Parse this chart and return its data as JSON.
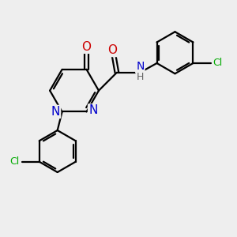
{
  "bg_color": "#eeeeee",
  "atom_colors": {
    "N": "#0000cc",
    "O": "#cc0000",
    "Cl": "#00aa00",
    "H": "#888888"
  },
  "bond_color": "#000000",
  "bond_width": 1.6,
  "font_size": 9,
  "fig_size": [
    3.0,
    3.0
  ],
  "dpi": 100
}
